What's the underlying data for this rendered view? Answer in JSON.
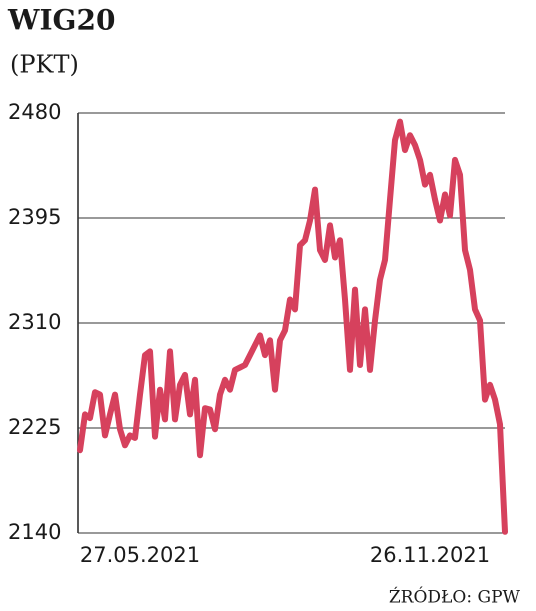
{
  "chart_data": {
    "type": "line",
    "title": "WIG20",
    "subtitle": "(PKT)",
    "source": "ŹRÓDŁO: GPW",
    "categories": [
      null,
      null,
      null,
      null,
      null,
      null,
      null,
      null,
      null,
      null,
      null,
      null,
      "27.05.2021",
      null,
      null,
      null,
      null,
      null,
      null,
      null,
      null,
      null,
      null,
      null,
      null,
      null,
      null,
      null,
      null,
      null,
      null,
      null,
      null,
      null,
      null,
      null,
      null,
      null,
      null,
      null,
      null,
      null,
      null,
      null,
      null,
      null,
      null,
      null,
      null,
      null,
      null,
      null,
      null,
      null,
      null,
      null,
      null,
      null,
      null,
      null,
      null,
      null,
      null,
      null,
      null,
      null,
      null,
      null,
      null,
      null,
      "26.11.2021",
      null,
      null,
      null,
      null,
      null,
      null,
      null,
      null,
      null,
      null,
      null,
      null,
      null,
      null,
      null
    ],
    "series": [
      {
        "name": "WIG20",
        "color": "#d6415d",
        "values": [
          2207,
          2236,
          2233,
          2254,
          2252,
          2219,
          2236,
          2252,
          2224,
          2211,
          2219,
          2217,
          2252,
          2284,
          2287,
          2218,
          2256,
          2232,
          2287,
          2232,
          2260,
          2268,
          2236,
          2264,
          2203,
          2241,
          2240,
          2224,
          2252,
          2264,
          2256,
          2272,
          2274,
          2276,
          2284,
          2292,
          2300,
          2284,
          2296,
          2256,
          2296,
          2304,
          2329,
          2321,
          2373,
          2377,
          2393,
          2418,
          2369,
          2361,
          2389,
          2363,
          2377,
          2329,
          2272,
          2337,
          2276,
          2321,
          2272,
          2312,
          2345,
          2361,
          2410,
          2458,
          2473,
          2450,
          2462,
          2454,
          2442,
          2422,
          2430,
          2410,
          2393,
          2414,
          2397,
          2442,
          2430,
          2369,
          2353,
          2321,
          2312,
          2248,
          2260,
          2248,
          2228,
          2141
        ]
      }
    ],
    "ylim": [
      2140,
      2480
    ],
    "yticks": [
      2140,
      2225,
      2310,
      2395,
      2480
    ],
    "grid": true
  }
}
